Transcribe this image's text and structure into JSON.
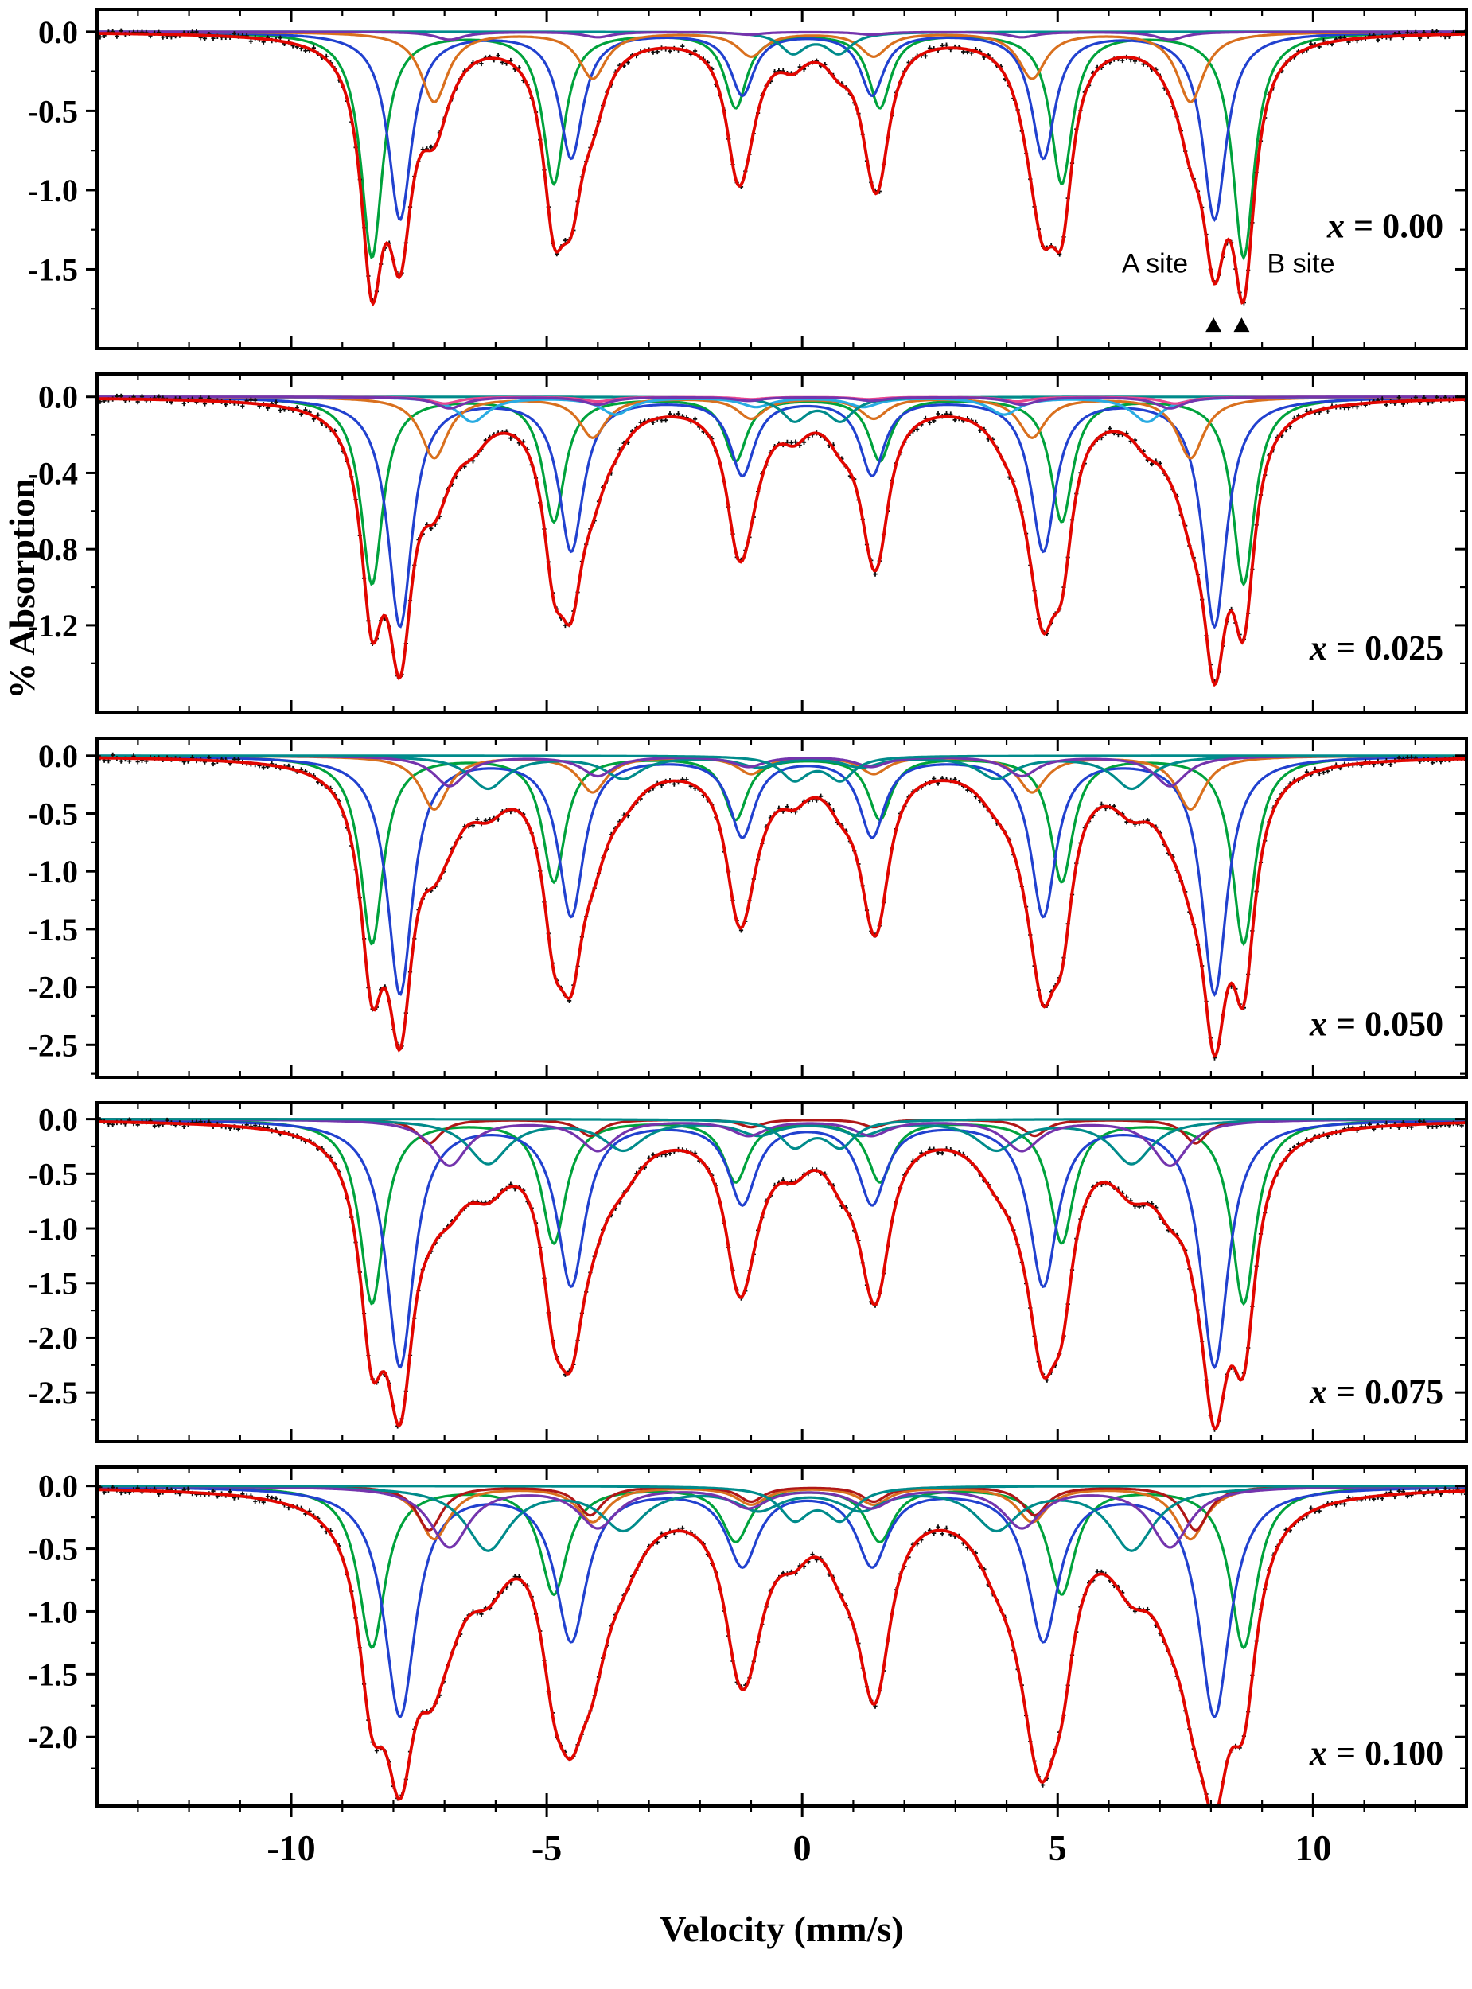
{
  "figure": {
    "ylabel": "% Absorption",
    "xlabel": "Velocity (mm/s)",
    "x_ticks": [
      -10,
      -5,
      0,
      5,
      10
    ],
    "x_minor_step": 1,
    "x_range": [
      -13.8,
      13.0
    ],
    "axis_color": "#000000",
    "total_fit_color": "#e10600",
    "data_color": "#0d0d0d"
  },
  "chart_data": [
    {
      "type": "line",
      "panel_label": {
        "variable": "x",
        "rest": " = 0.00",
        "text": "x = 0.00"
      },
      "y_ticks": [
        0.0,
        -0.5,
        -1.0,
        -1.5
      ],
      "y_range": [
        -2.0,
        0.14
      ],
      "label_y": -1.3,
      "noise_amp": 0.045,
      "annotations": [
        {
          "text": "A site",
          "v": 7.55,
          "y": -1.52,
          "align": "end",
          "marker_v": 8.05,
          "marker_y": -1.85
        },
        {
          "text": "B site",
          "v": 9.1,
          "y": -1.52,
          "align": "start",
          "marker_v": 8.6,
          "marker_y": -1.85
        }
      ],
      "components": [
        {
          "name": "B-site sextet",
          "color": "#00a23c",
          "width": 0.26,
          "positions": [
            -8.42,
            -4.86,
            -1.3,
            1.52,
            5.08,
            8.64
          ],
          "depths": [
            1.42,
            0.95,
            0.47,
            0.47,
            0.95,
            1.42
          ]
        },
        {
          "name": "A-site sextet",
          "color": "#2141cf",
          "width": 0.28,
          "positions": [
            -7.87,
            -4.52,
            -1.17,
            1.37,
            4.72,
            8.07
          ],
          "depths": [
            1.18,
            0.79,
            0.39,
            0.39,
            0.79,
            1.18
          ]
        },
        {
          "name": "sextet 3",
          "color": "#d9701e",
          "width": 0.32,
          "positions": [
            -7.2,
            -4.1,
            -1.0,
            1.4,
            4.5,
            7.6
          ],
          "depths": [
            0.44,
            0.29,
            0.15,
            0.15,
            0.29,
            0.44
          ]
        },
        {
          "name": "central doublet",
          "color": "#008b8b",
          "width": 0.3,
          "positions": [
            -0.18,
            0.72
          ],
          "depths": [
            0.13,
            0.13
          ]
        },
        {
          "name": "sextet 4",
          "color": "#7434ad",
          "width": 0.34,
          "positions": [
            -6.9,
            -4.0,
            -1.05,
            1.35,
            4.3,
            7.2
          ],
          "depths": [
            0.05,
            0.034,
            0.017,
            0.017,
            0.034,
            0.05
          ]
        }
      ]
    },
    {
      "type": "line",
      "panel_label": {
        "variable": "x",
        "rest": " = 0.025",
        "text": "x = 0.025"
      },
      "y_ticks": [
        0.0,
        -0.4,
        -0.8,
        -1.2
      ],
      "y_range": [
        -1.66,
        0.12
      ],
      "label_y": -1.38,
      "noise_amp": 0.04,
      "annotations": [],
      "components": [
        {
          "name": "B-site sextet",
          "color": "#00a23c",
          "width": 0.26,
          "positions": [
            -8.42,
            -4.86,
            -1.3,
            1.52,
            5.08,
            8.64
          ],
          "depths": [
            0.98,
            0.65,
            0.33,
            0.33,
            0.65,
            0.98
          ]
        },
        {
          "name": "A-site sextet",
          "color": "#2141cf",
          "width": 0.29,
          "positions": [
            -7.87,
            -4.52,
            -1.17,
            1.37,
            4.72,
            8.07
          ],
          "depths": [
            1.2,
            0.8,
            0.4,
            0.4,
            0.8,
            1.2
          ]
        },
        {
          "name": "sextet 3",
          "color": "#d9701e",
          "width": 0.32,
          "positions": [
            -7.2,
            -4.1,
            -1.0,
            1.4,
            4.5,
            7.6
          ],
          "depths": [
            0.32,
            0.21,
            0.11,
            0.11,
            0.21,
            0.32
          ]
        },
        {
          "name": "sextet 4",
          "color": "#29abe2",
          "width": 0.36,
          "positions": [
            -6.45,
            -3.65,
            -0.9,
            1.2,
            3.95,
            6.75
          ],
          "depths": [
            0.13,
            0.09,
            0.05,
            0.05,
            0.09,
            0.13
          ]
        },
        {
          "name": "central doublet",
          "color": "#008b8b",
          "width": 0.3,
          "positions": [
            -0.15,
            0.75
          ],
          "depths": [
            0.12,
            0.12
          ]
        },
        {
          "name": "sextet 5",
          "color": "#e8468f",
          "width": 0.34,
          "positions": [
            -7.0,
            -4.0,
            -1.0,
            1.3,
            4.2,
            7.3
          ],
          "depths": [
            0.035,
            0.024,
            0.012,
            0.012,
            0.024,
            0.035
          ]
        },
        {
          "name": "sextet 6",
          "color": "#7434ad",
          "width": 0.34,
          "positions": [
            -6.9,
            -4.0,
            -1.05,
            1.35,
            4.3,
            7.2
          ],
          "depths": [
            0.06,
            0.04,
            0.02,
            0.02,
            0.04,
            0.06
          ]
        }
      ]
    },
    {
      "type": "line",
      "panel_label": {
        "variable": "x",
        "rest": " = 0.050",
        "text": "x = 0.050"
      },
      "y_ticks": [
        0.0,
        -0.5,
        -1.0,
        -1.5,
        -2.0,
        -2.5
      ],
      "y_range": [
        -2.78,
        0.15
      ],
      "label_y": -2.42,
      "noise_amp": 0.055,
      "annotations": [],
      "components": [
        {
          "name": "B-site sextet",
          "color": "#00a23c",
          "width": 0.27,
          "positions": [
            -8.42,
            -4.86,
            -1.3,
            1.52,
            5.08,
            8.64
          ],
          "depths": [
            1.62,
            1.08,
            0.54,
            0.54,
            1.08,
            1.62
          ]
        },
        {
          "name": "A-site sextet",
          "color": "#2141cf",
          "width": 0.3,
          "positions": [
            -7.87,
            -4.52,
            -1.17,
            1.37,
            4.72,
            8.07
          ],
          "depths": [
            2.05,
            1.37,
            0.68,
            0.68,
            1.37,
            2.05
          ]
        },
        {
          "name": "sextet 3",
          "color": "#d9701e",
          "width": 0.33,
          "positions": [
            -7.2,
            -4.1,
            -1.0,
            1.4,
            4.5,
            7.6
          ],
          "depths": [
            0.46,
            0.31,
            0.15,
            0.15,
            0.31,
            0.46
          ]
        },
        {
          "name": "sextet 4",
          "color": "#008b8b",
          "width": 0.44,
          "positions": [
            -6.15,
            -3.5,
            -0.85,
            1.15,
            3.8,
            6.45
          ],
          "depths": [
            0.28,
            0.19,
            0.09,
            0.09,
            0.19,
            0.28
          ]
        },
        {
          "name": "sextet 5",
          "color": "#7434ad",
          "width": 0.38,
          "positions": [
            -6.9,
            -4.0,
            -1.05,
            1.35,
            4.3,
            7.2
          ],
          "depths": [
            0.26,
            0.17,
            0.09,
            0.09,
            0.17,
            0.26
          ]
        },
        {
          "name": "central doublet",
          "color": "#008b8b",
          "width": 0.32,
          "positions": [
            -0.15,
            0.75
          ],
          "depths": [
            0.2,
            0.2
          ]
        }
      ]
    },
    {
      "type": "line",
      "panel_label": {
        "variable": "x",
        "rest": " = 0.075",
        "text": "x = 0.075"
      },
      "y_ticks": [
        0.0,
        -0.5,
        -1.0,
        -1.5,
        -2.0,
        -2.5
      ],
      "y_range": [
        -2.95,
        0.15
      ],
      "label_y": -2.6,
      "noise_amp": 0.055,
      "annotations": [],
      "components": [
        {
          "name": "B-site sextet",
          "color": "#00a23c",
          "width": 0.29,
          "positions": [
            -8.42,
            -4.86,
            -1.3,
            1.52,
            5.08,
            8.64
          ],
          "depths": [
            1.68,
            1.12,
            0.56,
            0.56,
            1.12,
            1.68
          ]
        },
        {
          "name": "A-site sextet",
          "color": "#2141cf",
          "width": 0.33,
          "positions": [
            -7.87,
            -4.52,
            -1.17,
            1.37,
            4.72,
            8.07
          ],
          "depths": [
            2.25,
            1.5,
            0.75,
            0.75,
            1.5,
            2.25
          ]
        },
        {
          "name": "sextet 3",
          "color": "#b01717",
          "width": 0.28,
          "positions": [
            -7.3,
            -4.15,
            -1.0,
            1.4,
            4.55,
            7.7
          ],
          "depths": [
            0.22,
            0.15,
            0.07,
            0.07,
            0.15,
            0.22
          ]
        },
        {
          "name": "sextet 4",
          "color": "#008b8b",
          "width": 0.48,
          "positions": [
            -6.15,
            -3.5,
            -0.85,
            1.15,
            3.8,
            6.45
          ],
          "depths": [
            0.4,
            0.27,
            0.13,
            0.13,
            0.27,
            0.4
          ]
        },
        {
          "name": "sextet 5",
          "color": "#7434ad",
          "width": 0.42,
          "positions": [
            -6.9,
            -4.0,
            -1.05,
            1.35,
            4.3,
            7.2
          ],
          "depths": [
            0.42,
            0.28,
            0.14,
            0.14,
            0.28,
            0.42
          ]
        },
        {
          "name": "central doublet",
          "color": "#008b8b",
          "width": 0.34,
          "positions": [
            -0.15,
            0.75
          ],
          "depths": [
            0.24,
            0.24
          ]
        }
      ]
    },
    {
      "type": "line",
      "panel_label": {
        "variable": "x",
        "rest": " = 0.100",
        "text": "x = 0.100"
      },
      "y_ticks": [
        0.0,
        -0.5,
        -1.0,
        -1.5,
        -2.0
      ],
      "y_range": [
        -2.55,
        0.15
      ],
      "label_y": -2.22,
      "noise_amp": 0.055,
      "annotations": [],
      "components": [
        {
          "name": "B-site sextet",
          "color": "#00a23c",
          "width": 0.32,
          "positions": [
            -8.42,
            -4.86,
            -1.3,
            1.52,
            5.08,
            8.64
          ],
          "depths": [
            1.28,
            0.85,
            0.43,
            0.43,
            0.85,
            1.28
          ]
        },
        {
          "name": "A-site sextet",
          "color": "#2141cf",
          "width": 0.37,
          "positions": [
            -7.87,
            -4.52,
            -1.17,
            1.37,
            4.72,
            8.07
          ],
          "depths": [
            1.82,
            1.21,
            0.61,
            0.61,
            1.21,
            1.82
          ]
        },
        {
          "name": "sextet 3",
          "color": "#d9701e",
          "width": 0.36,
          "positions": [
            -7.2,
            -4.1,
            -1.0,
            1.4,
            4.5,
            7.6
          ],
          "depths": [
            0.42,
            0.28,
            0.14,
            0.14,
            0.28,
            0.42
          ]
        },
        {
          "name": "sextet 4",
          "color": "#b01717",
          "width": 0.3,
          "positions": [
            -7.3,
            -4.15,
            -1.0,
            1.4,
            4.55,
            7.7
          ],
          "depths": [
            0.35,
            0.23,
            0.12,
            0.12,
            0.23,
            0.35
          ]
        },
        {
          "name": "sextet 5",
          "color": "#008b8b",
          "width": 0.52,
          "positions": [
            -6.15,
            -3.5,
            -0.85,
            1.15,
            3.8,
            6.45
          ],
          "depths": [
            0.5,
            0.33,
            0.17,
            0.17,
            0.33,
            0.5
          ]
        },
        {
          "name": "sextet 6",
          "color": "#7434ad",
          "width": 0.46,
          "positions": [
            -6.9,
            -4.0,
            -1.05,
            1.35,
            4.3,
            7.2
          ],
          "depths": [
            0.48,
            0.32,
            0.16,
            0.16,
            0.32,
            0.48
          ]
        },
        {
          "name": "central doublet",
          "color": "#008b8b",
          "width": 0.36,
          "positions": [
            -0.15,
            0.75
          ],
          "depths": [
            0.25,
            0.25
          ]
        }
      ]
    }
  ]
}
